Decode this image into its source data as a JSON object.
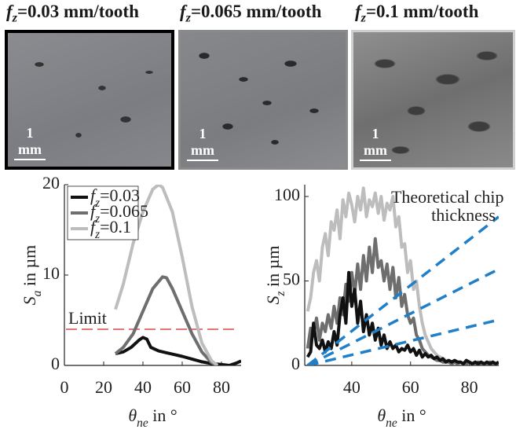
{
  "panels": [
    {
      "title": "fz=0.03 mm/tooth",
      "scale": "1 mm"
    },
    {
      "title": "fz=0.065 mm/tooth",
      "scale": "1 mm"
    },
    {
      "title": "fz=0.1 mm/tooth",
      "scale": "1 mm"
    }
  ],
  "chart_data": [
    {
      "type": "line",
      "ylabel": "Sa in µm",
      "xlabel": "θne in °",
      "xlim": [
        0,
        90
      ],
      "xticks": [
        0,
        20,
        40,
        60,
        80
      ],
      "ylim": [
        0,
        20
      ],
      "yticks": [
        0,
        10,
        20
      ],
      "legend": "upper left",
      "hlines": [
        {
          "value": 4,
          "label": "Limit",
          "color": "#d62020"
        }
      ],
      "series": [
        {
          "name": "fz=0.03",
          "color": "#111111",
          "x": [
            26,
            30,
            34,
            38,
            40,
            42,
            44,
            48,
            52,
            56,
            60,
            65,
            70,
            75,
            80,
            84,
            88,
            90
          ],
          "values": [
            1.3,
            1.5,
            2.0,
            2.8,
            3.1,
            2.9,
            2.0,
            1.6,
            1.4,
            1.2,
            1.0,
            0.7,
            0.4,
            0.2,
            0.1,
            0.0,
            0.3,
            0.5
          ]
        },
        {
          "name": "fz=0.065",
          "color": "#6e6e6e",
          "x": [
            26,
            30,
            35,
            40,
            45,
            50,
            52,
            55,
            60,
            65,
            70,
            75,
            78
          ],
          "values": [
            1.3,
            2.0,
            3.5,
            6,
            8.5,
            9.8,
            9.7,
            8.5,
            6,
            3.5,
            1.5,
            0.3,
            0
          ]
        },
        {
          "name": "fz=0.1",
          "color": "#bdbdbd",
          "x": [
            26,
            30,
            35,
            40,
            45,
            48,
            50,
            55,
            60,
            65,
            70,
            75,
            78
          ],
          "values": [
            6.2,
            9,
            13.5,
            17,
            19.5,
            20,
            19.7,
            17,
            12,
            6.5,
            2.5,
            0.5,
            0
          ]
        }
      ]
    },
    {
      "type": "line",
      "ylabel": "Sz in µm",
      "xlabel": "θne in °",
      "xlim": [
        24,
        90
      ],
      "xticks": [
        40,
        60,
        80
      ],
      "ylim": [
        0,
        107
      ],
      "yticks": [
        0,
        50,
        100
      ],
      "annotation": "Theoretical chip thickness",
      "annotation_color": "#1f7fc8",
      "x": [
        25,
        26,
        27,
        28,
        29,
        30,
        31,
        32,
        33,
        34,
        35,
        36,
        37,
        38,
        39,
        40,
        41,
        42,
        43,
        44,
        45,
        46,
        47,
        48,
        49,
        50,
        51,
        52,
        53,
        54,
        55,
        56,
        57,
        58,
        59,
        60,
        61,
        62,
        63,
        64,
        65,
        66,
        67,
        68,
        69,
        70,
        71,
        72,
        73,
        74,
        75,
        76,
        77,
        78,
        79,
        80,
        81,
        82,
        83,
        84,
        85,
        86,
        87,
        88,
        89,
        90
      ],
      "series": [
        {
          "color": "#bdbdbd",
          "values": [
            32,
            40,
            55,
            62,
            50,
            70,
            78,
            65,
            85,
            80,
            92,
            75,
            98,
            88,
            102,
            95,
            85,
            100,
            92,
            105,
            88,
            98,
            94,
            102,
            90,
            100,
            86,
            96,
            92,
            100,
            82,
            88,
            70,
            72,
            55,
            62,
            45,
            50,
            35,
            25,
            18,
            14,
            10,
            8,
            6,
            5,
            4,
            3,
            3,
            2,
            3,
            2,
            2,
            1,
            2,
            2,
            1,
            2,
            1,
            2,
            1,
            2,
            1,
            2,
            1,
            2
          ]
        },
        {
          "color": "#6e6e6e",
          "values": [
            10,
            22,
            18,
            28,
            15,
            25,
            20,
            30,
            22,
            35,
            25,
            40,
            30,
            48,
            38,
            55,
            42,
            60,
            45,
            65,
            50,
            70,
            55,
            75,
            58,
            62,
            50,
            60,
            45,
            58,
            40,
            52,
            35,
            42,
            30,
            25,
            28,
            18,
            15,
            10,
            8,
            6,
            5,
            4,
            3,
            3,
            2,
            2,
            2,
            1,
            2,
            1,
            2,
            1,
            1,
            2,
            1,
            1,
            2,
            1,
            1,
            1,
            2,
            1,
            1,
            1
          ]
        },
        {
          "color": "#111111",
          "values": [
            5,
            8,
            25,
            12,
            10,
            15,
            8,
            14,
            10,
            20,
            12,
            30,
            40,
            25,
            55,
            35,
            45,
            25,
            38,
            20,
            30,
            18,
            25,
            15,
            22,
            12,
            18,
            10,
            14,
            10,
            12,
            8,
            10,
            9,
            12,
            8,
            10,
            6,
            9,
            5,
            7,
            5,
            6,
            4,
            5,
            3,
            4,
            2,
            3,
            2,
            3,
            2,
            2,
            1,
            3,
            2,
            1,
            2,
            1,
            2,
            1,
            2,
            1,
            2,
            1,
            2
          ]
        },
        {
          "color": "#1f7fc8",
          "dash": true,
          "x": [
            25,
            90
          ],
          "values": [
            0,
            88
          ]
        },
        {
          "color": "#1f7fc8",
          "dash": true,
          "x": [
            25,
            90
          ],
          "values": [
            0,
            57
          ]
        },
        {
          "color": "#1f7fc8",
          "dash": true,
          "x": [
            25,
            90
          ],
          "values": [
            0,
            27
          ]
        }
      ]
    }
  ]
}
